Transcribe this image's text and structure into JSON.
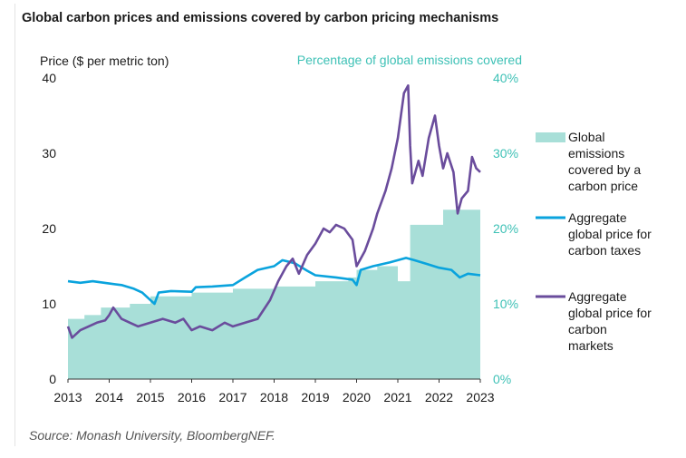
{
  "title": "Global carbon prices and emissions covered by carbon pricing mechanisms",
  "source": "Source: Monash University, BloombergNEF.",
  "chart_data": {
    "type": "line",
    "left_axis_label": "Price ($ per metric ton)",
    "right_axis_label": "Percentage of global emissions covered",
    "ylim": [
      0,
      40
    ],
    "yticks": [
      "0",
      "10",
      "20",
      "30",
      "40"
    ],
    "y2lim": [
      0,
      40
    ],
    "y2ticks": [
      "0%",
      "10%",
      "20%",
      "30%",
      "40%"
    ],
    "xlim": [
      2013,
      2023
    ],
    "xticks": [
      "2013",
      "2014",
      "2015",
      "2016",
      "2017",
      "2018",
      "2019",
      "2020",
      "2021",
      "2022",
      "2023"
    ],
    "grid": false,
    "legend_position": "right",
    "colors": {
      "coverage": "#a8dfd8",
      "taxes": "#0aa3dd",
      "markets": "#6a4c9c",
      "right_axis_text": "#3ec1b6"
    },
    "series": [
      {
        "name": "Global emissions covered by a carbon price",
        "kind": "area",
        "axis": "right",
        "x": [
          2013.0,
          2013.4,
          2013.4,
          2013.8,
          2013.8,
          2014.5,
          2014.5,
          2015.0,
          2015.0,
          2016.0,
          2016.0,
          2017.0,
          2017.0,
          2018.0,
          2018.0,
          2019.0,
          2019.0,
          2019.8,
          2019.8,
          2020.0,
          2020.0,
          2020.5,
          2020.5,
          2021.0,
          2021.0,
          2021.3,
          2021.3,
          2022.1,
          2022.1,
          2023.0
        ],
        "values": [
          8.0,
          8.0,
          8.5,
          8.5,
          9.5,
          9.5,
          10.0,
          10.0,
          11.0,
          11.0,
          11.5,
          11.5,
          12.0,
          12.0,
          12.3,
          12.3,
          13.0,
          13.0,
          13.5,
          13.5,
          14.5,
          14.5,
          15.0,
          15.0,
          13.0,
          13.0,
          20.5,
          20.5,
          22.5,
          22.5
        ]
      },
      {
        "name": "Aggregate global price for carbon taxes",
        "kind": "line",
        "axis": "left",
        "x": [
          2013.0,
          2013.3,
          2013.6,
          2014.0,
          2014.3,
          2014.6,
          2014.8,
          2015.0,
          2015.1,
          2015.2,
          2015.5,
          2016.0,
          2016.1,
          2016.5,
          2017.0,
          2017.3,
          2017.6,
          2018.0,
          2018.2,
          2018.5,
          2018.8,
          2019.0,
          2019.5,
          2019.9,
          2020.0,
          2020.1,
          2020.4,
          2020.8,
          2021.0,
          2021.2,
          2021.4,
          2021.7,
          2022.0,
          2022.3,
          2022.5,
          2022.7,
          2023.0
        ],
        "values": [
          13.0,
          12.8,
          13.0,
          12.7,
          12.5,
          12.0,
          11.5,
          10.5,
          10.0,
          11.5,
          11.7,
          11.6,
          12.2,
          12.3,
          12.5,
          13.5,
          14.5,
          15.0,
          15.8,
          15.4,
          14.4,
          13.8,
          13.5,
          13.2,
          12.5,
          14.5,
          15.0,
          15.5,
          15.8,
          16.1,
          15.8,
          15.3,
          14.8,
          14.5,
          13.5,
          14.0,
          13.8
        ]
      },
      {
        "name": "Aggregate global price for carbon markets",
        "kind": "line",
        "axis": "left",
        "x": [
          2013.0,
          2013.1,
          2013.3,
          2013.5,
          2013.7,
          2013.9,
          2014.0,
          2014.1,
          2014.3,
          2014.5,
          2014.7,
          2015.0,
          2015.3,
          2015.6,
          2015.8,
          2016.0,
          2016.2,
          2016.5,
          2016.8,
          2017.0,
          2017.3,
          2017.6,
          2017.9,
          2018.1,
          2018.3,
          2018.45,
          2018.6,
          2018.8,
          2019.0,
          2019.2,
          2019.35,
          2019.5,
          2019.7,
          2019.9,
          2020.0,
          2020.2,
          2020.4,
          2020.5,
          2020.7,
          2020.85,
          2021.0,
          2021.15,
          2021.25,
          2021.3,
          2021.35,
          2021.5,
          2021.6,
          2021.75,
          2021.9,
          2022.0,
          2022.1,
          2022.2,
          2022.35,
          2022.45,
          2022.55,
          2022.7,
          2022.8,
          2022.9,
          2023.0
        ],
        "values": [
          7.0,
          5.5,
          6.5,
          7.0,
          7.5,
          7.8,
          8.5,
          9.5,
          8.0,
          7.5,
          7.0,
          7.5,
          8.0,
          7.5,
          8.0,
          6.5,
          7.0,
          6.5,
          7.5,
          7.0,
          7.5,
          8.0,
          10.5,
          13.0,
          15.0,
          16.0,
          14.0,
          16.5,
          18.0,
          20.0,
          19.5,
          20.5,
          20.0,
          18.5,
          15.0,
          17.0,
          20.0,
          22.0,
          25.0,
          28.0,
          32.0,
          38.0,
          39.0,
          31.0,
          26.0,
          29.0,
          27.0,
          32.0,
          35.0,
          31.0,
          28.0,
          30.0,
          27.5,
          22.0,
          24.0,
          25.0,
          29.5,
          28.0,
          27.5
        ]
      }
    ]
  }
}
